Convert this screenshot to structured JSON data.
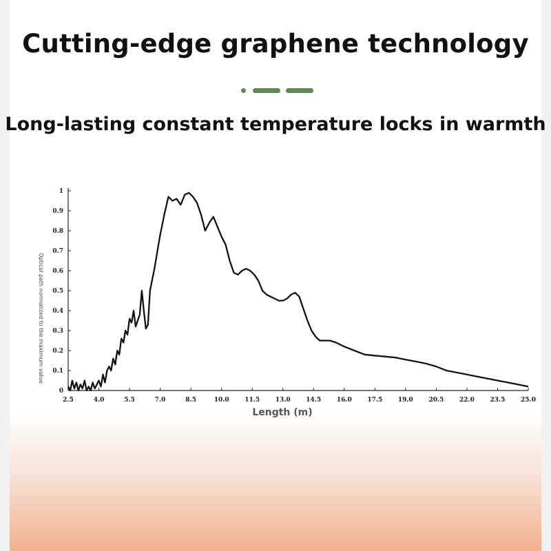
{
  "header": {
    "title": "Cutting-edge graphene technology",
    "subtitle": "Long-lasting constant temperature locks in warmth"
  },
  "colors": {
    "accent": "#5f8a55",
    "curve": "#111111",
    "background_bottom": "#f2b08f"
  },
  "chart_data": {
    "type": "line",
    "title": "",
    "xlabel": "Length (m)",
    "ylabel": "Optical path normalized to the maximum value",
    "xlim": [
      2.5,
      25.0
    ],
    "ylim": [
      0,
      1
    ],
    "x_ticks": [
      "2.5",
      "4.0",
      "5.5",
      "7.0",
      "8.5",
      "10.0",
      "11.5",
      "13.0",
      "14.5",
      "16.0",
      "17.5",
      "19.0",
      "20.5",
      "22.0",
      "23.5",
      "25.0"
    ],
    "y_ticks": [
      "0",
      "0.1",
      "0.2",
      "0.3",
      "0.4",
      "0.5",
      "0.6",
      "0.7",
      "0.8",
      "0.9",
      "1"
    ],
    "grid": false,
    "series": [
      {
        "x": [
          2.5,
          2.6,
          2.7,
          2.8,
          2.9,
          3.0,
          3.1,
          3.2,
          3.3,
          3.4,
          3.5,
          3.6,
          3.7,
          3.8,
          3.9,
          4.0,
          4.1,
          4.2,
          4.3,
          4.4,
          4.5,
          4.6,
          4.7,
          4.8,
          4.9,
          5.0,
          5.1,
          5.2,
          5.3,
          5.4,
          5.5,
          5.6,
          5.7,
          5.8,
          5.9,
          6.0,
          6.1,
          6.2,
          6.3,
          6.4,
          6.5,
          6.6,
          6.7,
          6.8,
          6.9,
          7.0,
          7.2,
          7.4,
          7.6,
          7.8,
          8.0,
          8.2,
          8.4,
          8.6,
          8.8,
          9.0,
          9.2,
          9.4,
          9.6,
          9.8,
          10.0,
          10.2,
          10.4,
          10.6,
          10.8,
          11.0,
          11.2,
          11.4,
          11.6,
          11.8,
          12.0,
          12.2,
          12.4,
          12.6,
          12.8,
          13.0,
          13.2,
          13.4,
          13.6,
          13.8,
          14.0,
          14.2,
          14.4,
          14.6,
          14.8,
          15.0,
          15.3,
          15.6,
          16.0,
          16.5,
          17.0,
          17.5,
          18.0,
          18.5,
          19.0,
          19.5,
          20.0,
          20.5,
          21.0,
          21.5,
          22.0,
          22.5,
          23.0,
          23.5,
          24.0,
          24.5,
          25.0
        ],
        "y": [
          0.02,
          0.0,
          0.05,
          0.01,
          0.04,
          0.0,
          0.03,
          0.01,
          0.05,
          0.0,
          0.02,
          0.0,
          0.04,
          0.01,
          0.03,
          0.05,
          0.02,
          0.08,
          0.04,
          0.1,
          0.12,
          0.1,
          0.16,
          0.13,
          0.2,
          0.18,
          0.26,
          0.24,
          0.3,
          0.28,
          0.36,
          0.34,
          0.4,
          0.32,
          0.35,
          0.38,
          0.5,
          0.4,
          0.31,
          0.33,
          0.5,
          0.55,
          0.6,
          0.66,
          0.72,
          0.78,
          0.88,
          0.97,
          0.95,
          0.96,
          0.93,
          0.98,
          0.99,
          0.97,
          0.94,
          0.88,
          0.8,
          0.84,
          0.87,
          0.82,
          0.77,
          0.73,
          0.65,
          0.59,
          0.58,
          0.6,
          0.61,
          0.6,
          0.58,
          0.55,
          0.5,
          0.48,
          0.47,
          0.46,
          0.45,
          0.45,
          0.46,
          0.48,
          0.49,
          0.47,
          0.41,
          0.35,
          0.3,
          0.27,
          0.25,
          0.25,
          0.25,
          0.24,
          0.22,
          0.2,
          0.18,
          0.175,
          0.17,
          0.165,
          0.155,
          0.145,
          0.135,
          0.12,
          0.1,
          0.09,
          0.08,
          0.07,
          0.06,
          0.05,
          0.04,
          0.03,
          0.02
        ]
      }
    ]
  }
}
